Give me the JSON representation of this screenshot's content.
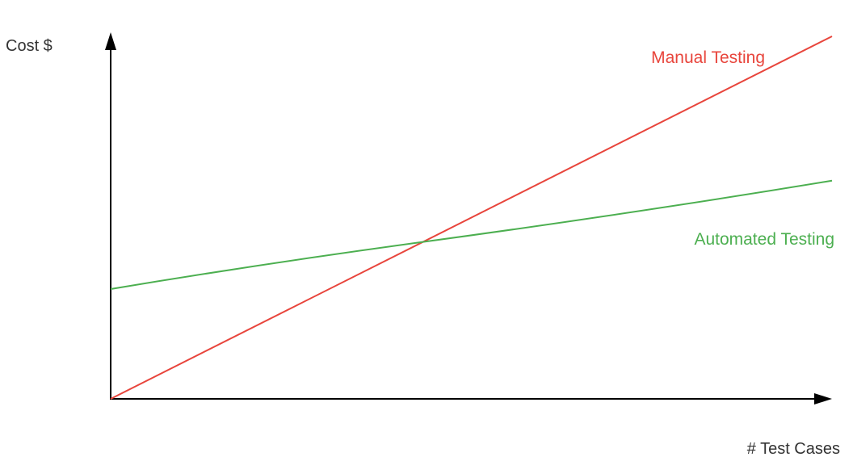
{
  "chart_data": {
    "type": "line",
    "title": "",
    "xlabel": "# Test Cases",
    "ylabel": "Cost $",
    "ticks": "none",
    "grid": false,
    "x": [
      0,
      100
    ],
    "xlim": [
      0,
      100
    ],
    "ylim": [
      0,
      100
    ],
    "series": [
      {
        "name": "Manual Testing",
        "color": "#e8453c",
        "x": [
          0,
          100
        ],
        "values": [
          0,
          100
        ]
      },
      {
        "name": "Automated Testing",
        "color": "#4caf50",
        "x": [
          0,
          43.3,
          100
        ],
        "values": [
          30.3,
          43.3,
          60.2
        ]
      }
    ]
  }
}
